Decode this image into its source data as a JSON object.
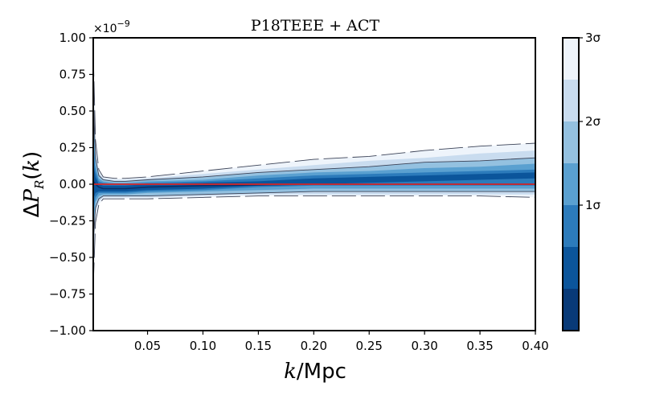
{
  "chart_data": {
    "type": "area",
    "title": "P18TEEE + ACT",
    "xlabel": "k/Mpc",
    "ylabel": "ΔP_R(k)",
    "y_multiplier": "×10",
    "y_multiplier_exp": "−9",
    "xlim": [
      0.001,
      0.4
    ],
    "ylim": [
      -1.0,
      1.0
    ],
    "xticks": [
      {
        "v": 0.05,
        "label": "0.05"
      },
      {
        "v": 0.1,
        "label": "0.10"
      },
      {
        "v": 0.15,
        "label": "0.15"
      },
      {
        "v": 0.2,
        "label": "0.20"
      },
      {
        "v": 0.25,
        "label": "0.25"
      },
      {
        "v": 0.3,
        "label": "0.30"
      },
      {
        "v": 0.35,
        "label": "0.35"
      },
      {
        "v": 0.4,
        "label": "0.40"
      }
    ],
    "yticks": [
      {
        "v": 1.0,
        "label": "1.00"
      },
      {
        "v": 0.75,
        "label": "0.75"
      },
      {
        "v": 0.5,
        "label": "0.50"
      },
      {
        "v": 0.25,
        "label": "0.25"
      },
      {
        "v": 0.0,
        "label": "0.00"
      },
      {
        "v": -0.25,
        "label": "−0.25"
      },
      {
        "v": -0.5,
        "label": "−0.50"
      },
      {
        "v": -0.75,
        "label": "−0.75"
      },
      {
        "v": -1.0,
        "label": "−1.00"
      }
    ],
    "grid": false,
    "x": [
      0.001,
      0.003,
      0.006,
      0.01,
      0.02,
      0.03,
      0.05,
      0.1,
      0.15,
      0.2,
      0.25,
      0.3,
      0.35,
      0.4
    ],
    "median": [
      0.02,
      0.0,
      -0.02,
      -0.03,
      -0.03,
      -0.03,
      -0.02,
      -0.01,
      -0.005,
      0.0,
      0.0,
      0.0,
      0.0,
      0.0
    ],
    "bands": [
      {
        "sigma": 3.0,
        "upper": [
          0.9,
          0.3,
          0.1,
          0.05,
          0.04,
          0.04,
          0.05,
          0.09,
          0.13,
          0.17,
          0.19,
          0.23,
          0.26,
          0.28
        ],
        "lower": [
          -0.7,
          -0.26,
          -0.14,
          -0.1,
          -0.1,
          -0.1,
          -0.1,
          -0.09,
          -0.08,
          -0.08,
          -0.08,
          -0.08,
          -0.08,
          -0.09
        ]
      },
      {
        "sigma": 2.5,
        "upper": [
          0.75,
          0.24,
          0.08,
          0.04,
          0.03,
          0.03,
          0.04,
          0.07,
          0.1,
          0.13,
          0.16,
          0.18,
          0.21,
          0.23
        ],
        "lower": [
          -0.55,
          -0.2,
          -0.12,
          -0.09,
          -0.09,
          -0.09,
          -0.09,
          -0.08,
          -0.07,
          -0.07,
          -0.07,
          -0.07,
          -0.07,
          -0.07
        ]
      },
      {
        "sigma": 2.0,
        "upper": [
          0.6,
          0.18,
          0.06,
          0.03,
          0.02,
          0.02,
          0.03,
          0.05,
          0.08,
          0.1,
          0.12,
          0.15,
          0.16,
          0.18
        ],
        "lower": [
          -0.4,
          -0.16,
          -0.1,
          -0.08,
          -0.08,
          -0.08,
          -0.08,
          -0.07,
          -0.06,
          -0.05,
          -0.05,
          -0.05,
          -0.05,
          -0.05
        ]
      },
      {
        "sigma": 1.5,
        "upper": [
          0.45,
          0.13,
          0.04,
          0.02,
          0.01,
          0.01,
          0.02,
          0.03,
          0.06,
          0.08,
          0.09,
          0.11,
          0.12,
          0.14
        ],
        "lower": [
          -0.3,
          -0.12,
          -0.08,
          -0.07,
          -0.07,
          -0.07,
          -0.06,
          -0.05,
          -0.04,
          -0.03,
          -0.03,
          -0.03,
          -0.03,
          -0.03
        ]
      },
      {
        "sigma": 1.0,
        "upper": [
          0.3,
          0.09,
          0.02,
          0.01,
          0.0,
          0.0,
          0.01,
          0.02,
          0.04,
          0.06,
          0.07,
          0.08,
          0.09,
          0.1
        ],
        "lower": [
          -0.2,
          -0.09,
          -0.06,
          -0.06,
          -0.06,
          -0.06,
          -0.05,
          -0.04,
          -0.02,
          -0.01,
          -0.01,
          -0.01,
          -0.01,
          -0.01
        ]
      },
      {
        "sigma": 0.5,
        "upper": [
          0.15,
          0.05,
          0.0,
          -0.01,
          -0.01,
          -0.01,
          0.0,
          0.01,
          0.02,
          0.04,
          0.05,
          0.06,
          0.07,
          0.08
        ],
        "lower": [
          -0.1,
          -0.06,
          -0.05,
          -0.05,
          -0.05,
          -0.05,
          -0.04,
          -0.03,
          -0.01,
          0.0,
          0.01,
          0.02,
          0.03,
          0.04
        ]
      }
    ],
    "reference_line": {
      "y": 0.0,
      "color": "#d62728"
    },
    "colorbar": {
      "levels": [
        {
          "sigma": 3.0,
          "color": "#eef4fb"
        },
        {
          "sigma": 2.5,
          "color": "#c9dcef"
        },
        {
          "sigma": 2.0,
          "color": "#94c1e0"
        },
        {
          "sigma": 1.5,
          "color": "#5aa0d0"
        },
        {
          "sigma": 1.0,
          "color": "#2c7bbb"
        },
        {
          "sigma": 0.5,
          "color": "#0b559b"
        },
        {
          "sigma": 0.0,
          "color": "#083a78"
        }
      ],
      "tick_labels": [
        {
          "sigma": 3,
          "label": "3σ"
        },
        {
          "sigma": 2,
          "label": "2σ"
        },
        {
          "sigma": 1,
          "label": "1σ"
        }
      ]
    }
  }
}
